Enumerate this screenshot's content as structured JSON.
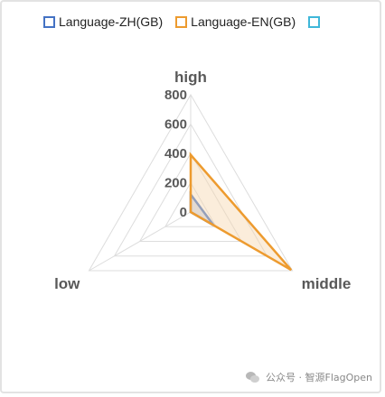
{
  "chart_data": {
    "type": "radar",
    "axes": [
      "high",
      "middle",
      "low"
    ],
    "radial_ticks": [
      "0",
      "200",
      "400",
      "600",
      "800"
    ],
    "rlim": [
      0,
      800
    ],
    "series": [
      {
        "name": "Language-ZH(GB)",
        "color": "#4472c4",
        "fill": "#9fb3d6",
        "values": [
          120,
          180,
          0
        ]
      },
      {
        "name": "Language-EN(GB)",
        "color": "#ed9b2f",
        "fill": "#f6d7b0",
        "values": [
          390,
          790,
          0
        ]
      },
      {
        "name": "",
        "color": "#3fb7d9",
        "fill": "none",
        "values": [
          0,
          0,
          0
        ]
      }
    ],
    "legend": "top",
    "grid": true
  },
  "footer": {
    "account_text": "公众号 · 智源FlagOpen"
  }
}
